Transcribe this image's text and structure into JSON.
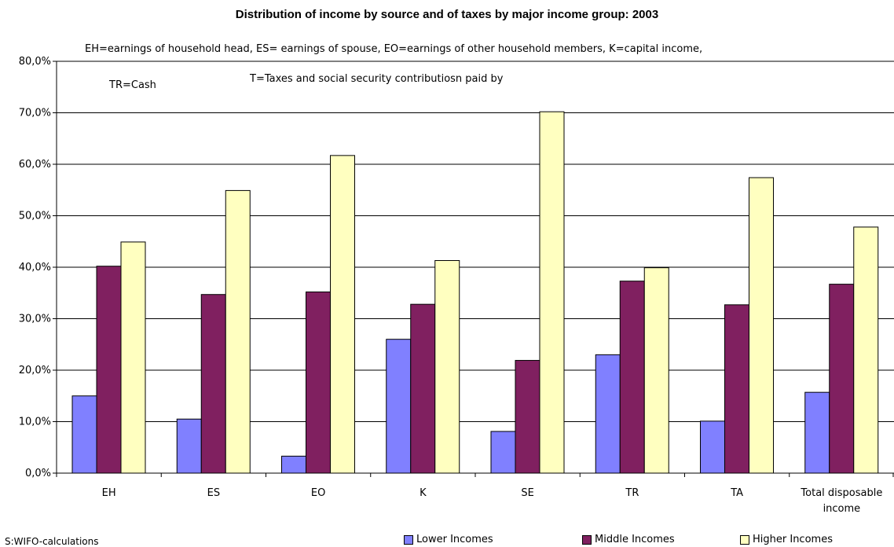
{
  "chart_data": {
    "type": "bar",
    "title": "Distribution of income by source and of taxes by major income group: 2003",
    "annotations": [
      "EH=earnings of household head,  ES= earnings of spouse,   EO=earnings of other household members,   K=capital income,",
      "TR=Cash",
      "T=Taxes and social security contributiosn paid by"
    ],
    "categories": [
      "EH",
      "ES",
      "EO",
      "K",
      "SE",
      "TR",
      "TA",
      "Total disposable income"
    ],
    "series": [
      {
        "name": "Lower Incomes",
        "color": "#8080ff",
        "values": [
          15.0,
          10.5,
          3.3,
          26.0,
          8.1,
          23.0,
          10.1,
          15.7
        ]
      },
      {
        "name": "Middle Incomes",
        "color": "#802060",
        "values": [
          40.2,
          34.7,
          35.2,
          32.8,
          21.9,
          37.3,
          32.7,
          36.7
        ]
      },
      {
        "name": "Higher Incomes",
        "color": "#ffffc0",
        "values": [
          44.9,
          54.9,
          61.7,
          41.3,
          70.2,
          39.9,
          57.4,
          47.8
        ]
      }
    ],
    "ylim": [
      0,
      80
    ],
    "yticks": [
      "0,0%",
      "10,0%",
      "20,0%",
      "30,0%",
      "40,0%",
      "50,0%",
      "60,0%",
      "70,0%",
      "80,0%"
    ],
    "grid": true,
    "legend_position": "bottom",
    "source": "S:WIFO-calculations"
  }
}
